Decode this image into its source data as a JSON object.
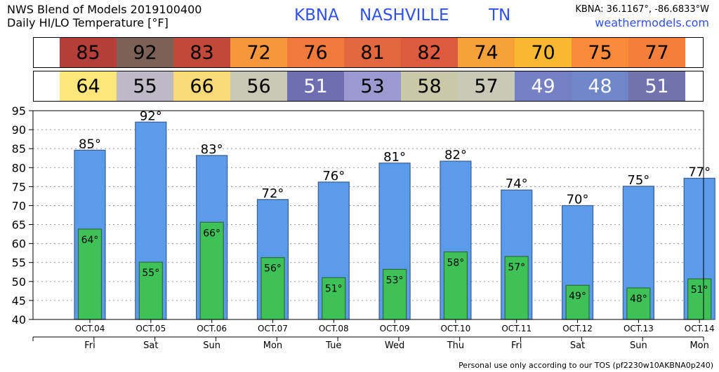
{
  "header": {
    "title_line1": "NWS Blend of Models 2019100400",
    "title_line2": "Daily HI/LO Temperature [°F]",
    "station_id": "KBNA",
    "station_name": "NASHVILLE",
    "state": "TN",
    "coords": "KBNA: 36.1167°, -86.6833°W",
    "site": "weathermodels.com"
  },
  "footer": "Personal use only according to our TOS (pf2230w10AKBNA0p240)",
  "colors": {
    "hi_bar": "#5a9bec",
    "lo_bar": "#3ec257",
    "hi_cells": [
      "#b43e3a",
      "#7c6157",
      "#c04a3a",
      "#f5963a",
      "#f07a3c",
      "#e2663e",
      "#dd5a3e",
      "#f6a03a",
      "#f9b830",
      "#f88a3a",
      "#f47f3c"
    ],
    "lo_cells": [
      "#fbe77a",
      "#bdbac6",
      "#f9d878",
      "#c8c8b4",
      "#6e6fb0",
      "#9a99d0",
      "#c9c9a9",
      "#c9c9b8",
      "#7680c4",
      "#6f86c8",
      "#7272ae"
    ],
    "lo_text": [
      "dark",
      "dark",
      "dark",
      "dark",
      "light",
      "dark",
      "dark",
      "dark",
      "light",
      "light",
      "light"
    ]
  },
  "chart_data": {
    "type": "bar",
    "title": "Daily HI/LO Temperature [°F]",
    "categories": [
      "OCT.04",
      "OCT.05",
      "OCT.06",
      "OCT.07",
      "OCT.08",
      "OCT.09",
      "OCT.10",
      "OCT.11",
      "OCT.12",
      "OCT.13",
      "OCT.14"
    ],
    "days": [
      "Fri",
      "Sat",
      "Sun",
      "Mon",
      "Tue",
      "Wed",
      "Thu",
      "Fri",
      "Sat",
      "Sun",
      "Mon"
    ],
    "series": [
      {
        "name": "HI",
        "values": [
          84.6,
          92,
          83.2,
          71.6,
          76.2,
          81.2,
          81.7,
          74.1,
          70,
          75.1,
          77.2
        ],
        "labels": [
          "85",
          "92",
          "83",
          "72",
          "76",
          "81",
          "82",
          "74",
          "70",
          "75",
          "77"
        ]
      },
      {
        "name": "LO",
        "values": [
          63.8,
          55.1,
          65.6,
          56.3,
          51,
          53.2,
          57.8,
          56.6,
          49,
          48.3,
          50.7
        ],
        "labels": [
          "64",
          "55",
          "66",
          "56",
          "51",
          "53",
          "58",
          "57",
          "49",
          "48",
          "51"
        ]
      }
    ],
    "ylim": [
      40,
      95
    ],
    "yticks": [
      40,
      45,
      50,
      55,
      60,
      65,
      70,
      75,
      80,
      85,
      90,
      95
    ],
    "degree_symbol": "°",
    "grid": true
  }
}
